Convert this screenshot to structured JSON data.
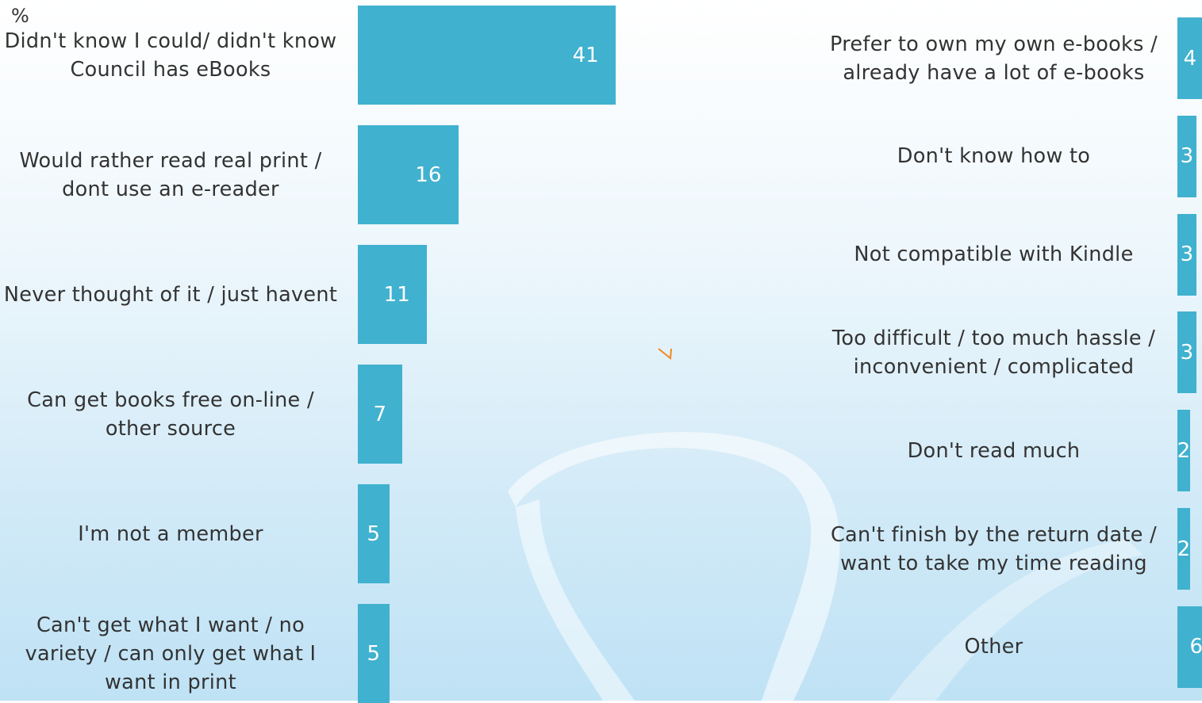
{
  "chart_data": [
    {
      "type": "bar",
      "orientation": "horizontal",
      "title": "%",
      "color": "#40b1cf",
      "categories": [
        "Didn't know I could/ didn't know Council has eBooks",
        "Would rather read real print / dont use an e-reader",
        "Never thought of it / just havent",
        "Can get books free on-line / other source",
        "I'm not a member",
        "Can't get what I want / no variety / can only get what I want in print"
      ],
      "values": [
        41,
        16,
        11,
        7,
        5,
        5
      ]
    },
    {
      "type": "bar",
      "orientation": "horizontal",
      "color": "#40b1cf",
      "categories": [
        "Prefer to own my own e-books / already have a lot of e-books",
        "Don't know how to",
        "Not compatible with Kindle",
        "Too difficult / too much hassle / inconvenient / complicated",
        "Don't read much",
        "Can't finish by the return date / want to take my time reading",
        "Other"
      ],
      "values": [
        4,
        3,
        3,
        3,
        2,
        2,
        6
      ]
    }
  ]
}
